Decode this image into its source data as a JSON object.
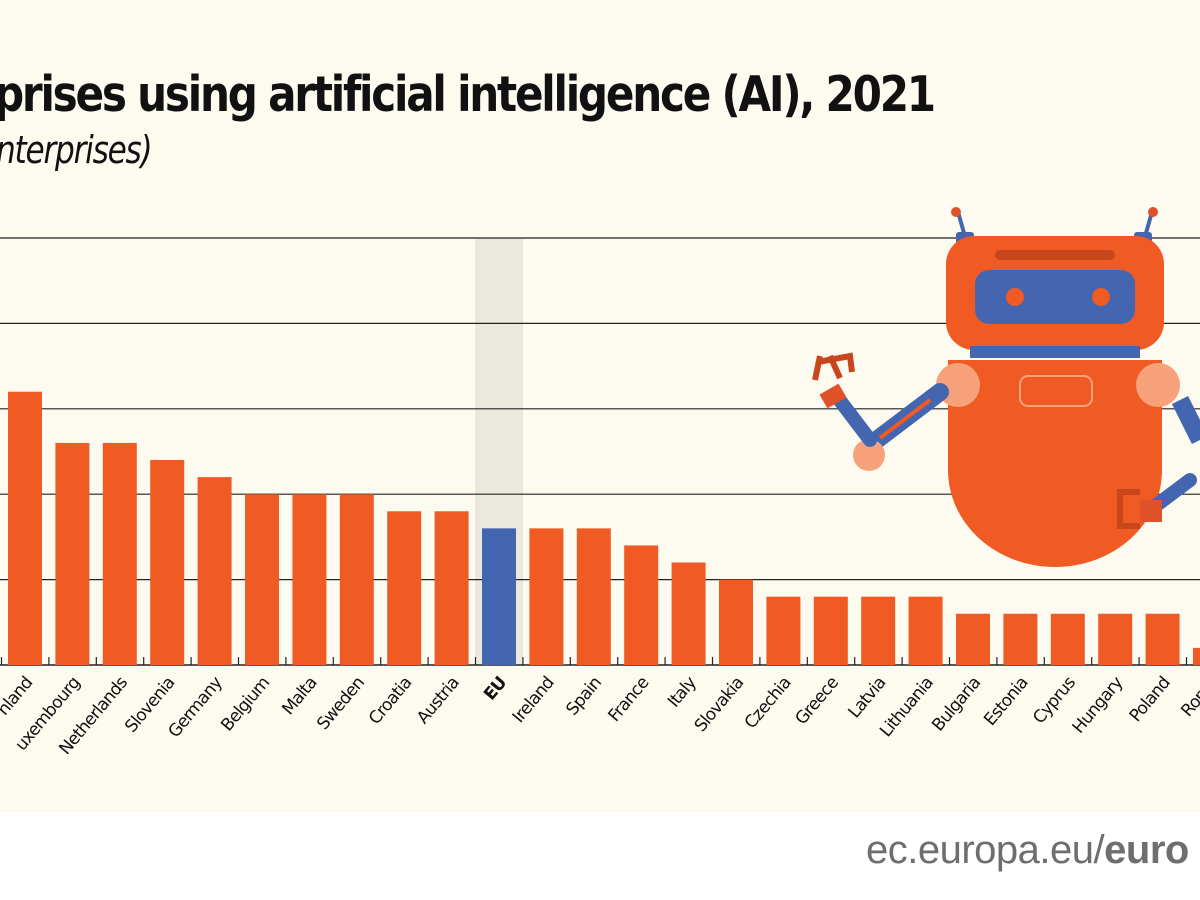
{
  "chart_data": {
    "type": "bar",
    "title": "prises using artificial intelligence (AI), 2021",
    "subtitle": "nterprises)",
    "categories": [
      "nland",
      "uxembourg",
      "Netherlands",
      "Slovenia",
      "Germany",
      "Belgium",
      "Malta",
      "Sweden",
      "Croatia",
      "Austria",
      "EU",
      "Ireland",
      "Spain",
      "France",
      "Italy",
      "Slovakia",
      "Czechia",
      "Greece",
      "Latvia",
      "Lithuania",
      "Bulgaria",
      "Estonia",
      "Cyprus",
      "Hungary",
      "Poland",
      "Roma"
    ],
    "values": [
      16,
      13,
      13,
      12,
      11,
      10,
      10,
      10,
      9,
      9,
      8,
      8,
      8,
      7,
      6,
      5,
      4,
      4,
      4,
      4,
      3,
      3,
      3,
      3,
      3,
      1
    ],
    "highlight": "EU",
    "ylim": [
      0,
      25
    ],
    "gridlines": [
      5,
      10,
      15,
      20,
      25
    ],
    "grid": true,
    "colors": {
      "bar": "#f05a23",
      "highlight_bar": "#4466b0",
      "highlight_band": "#ebe8de",
      "background": "#fdfaf0",
      "grid": "#222222"
    },
    "decoration": "robot-illustration"
  },
  "footer": {
    "domain": "ec.europa.eu/",
    "brand": "euro"
  }
}
